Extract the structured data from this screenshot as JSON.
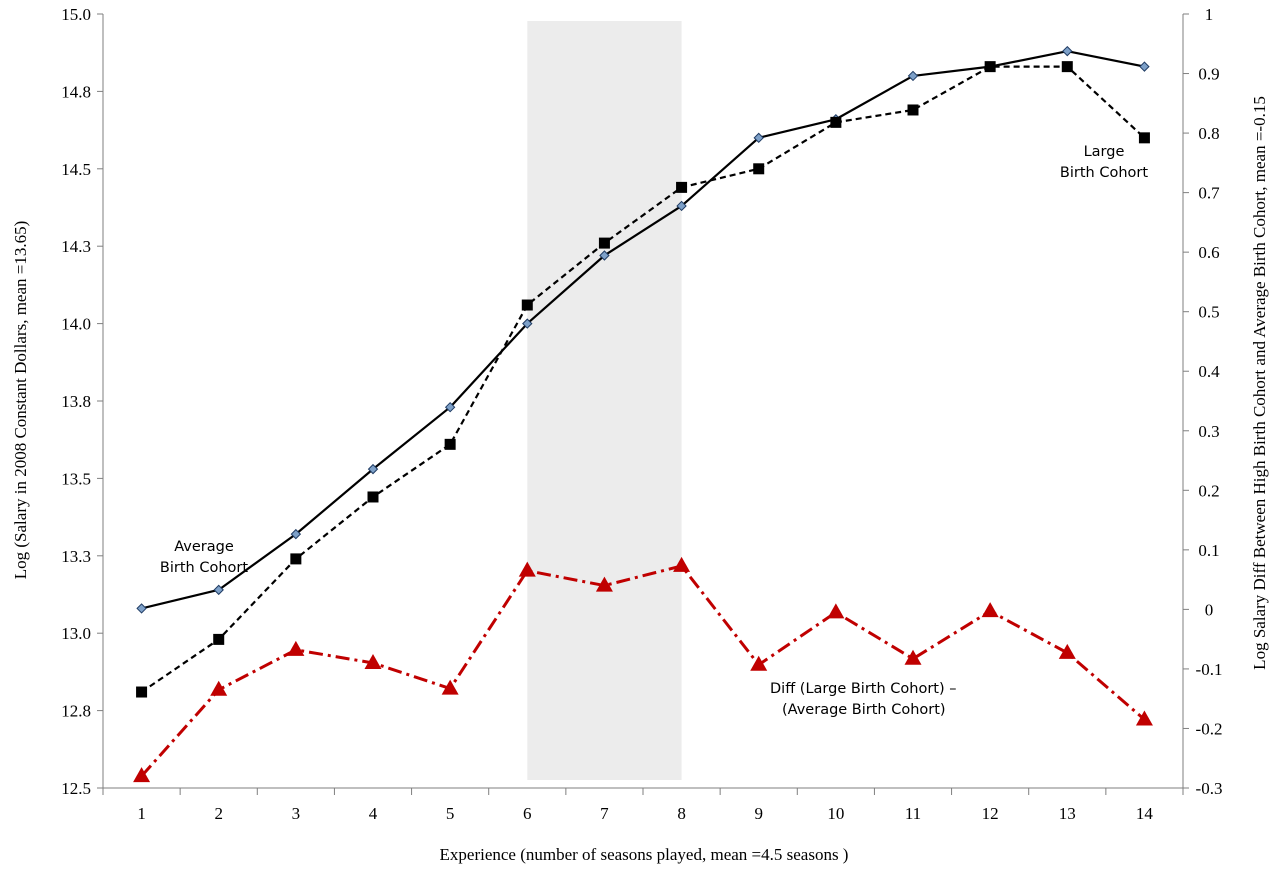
{
  "chart_data": {
    "type": "line",
    "x": [
      1,
      2,
      3,
      4,
      5,
      6,
      7,
      8,
      9,
      10,
      11,
      12,
      13,
      14
    ],
    "xlabel": "Experience (number of seasons played,  mean =4.5 seasons )",
    "ylabel": "Log (Salary in 2008 Constant Dollars, mean =13.65)",
    "y2label": "Log Salary Diff Between High Birth Cohort and Average Birth Cohort, mean =-0.15",
    "xlim": [
      0.5,
      14.5
    ],
    "ylim": [
      12.5,
      15.0
    ],
    "y2lim": [
      -0.3,
      1.0
    ],
    "yticks": [
      "12.5",
      "12.8",
      "13.0",
      "13.3",
      "13.5",
      "13.8",
      "14.0",
      "14.3",
      "14.5",
      "14.8",
      "15.0"
    ],
    "y2ticks": [
      "-0.3",
      "-0.2",
      "-0.1",
      "0",
      "0.1",
      "0.2",
      "0.3",
      "0.4",
      "0.5",
      "0.6",
      "0.7",
      "0.8",
      "0.9",
      "1"
    ],
    "xticks": [
      "1",
      "2",
      "3",
      "4",
      "5",
      "6",
      "7",
      "8",
      "9",
      "10",
      "11",
      "12",
      "13",
      "14"
    ],
    "shaded_region": [
      6,
      8
    ],
    "grid": false,
    "series": [
      {
        "key": "average",
        "axis": "left",
        "style": "solid",
        "marker": "diamond",
        "color": "#000000",
        "marker_color": "#7da0c8",
        "values": [
          13.08,
          13.14,
          13.32,
          13.53,
          13.73,
          14.0,
          14.22,
          14.38,
          14.6,
          14.66,
          14.8,
          14.83,
          14.88,
          14.83
        ]
      },
      {
        "key": "large",
        "axis": "left",
        "style": "dashed",
        "marker": "square",
        "color": "#000000",
        "marker_color": "#000000",
        "values": [
          12.81,
          12.98,
          13.24,
          13.44,
          13.61,
          14.06,
          14.26,
          14.44,
          14.5,
          14.65,
          14.69,
          14.83,
          14.83,
          14.6
        ]
      },
      {
        "key": "diff",
        "axis": "right",
        "style": "dashdot",
        "marker": "triangle",
        "color": "#c00000",
        "marker_color": "#c00000",
        "values": [
          -0.28,
          -0.135,
          -0.068,
          -0.09,
          -0.133,
          0.065,
          0.04,
          0.073,
          -0.093,
          -0.005,
          -0.083,
          -0.003,
          -0.073,
          -0.185
        ]
      }
    ],
    "annotations": {
      "average_label": [
        "Average",
        "Birth Cohort"
      ],
      "large_label": [
        "Large",
        "Birth Cohort"
      ],
      "diff_label": [
        "Diff  (Large Birth Cohort) –",
        "(Average Birth Cohort)"
      ]
    }
  }
}
